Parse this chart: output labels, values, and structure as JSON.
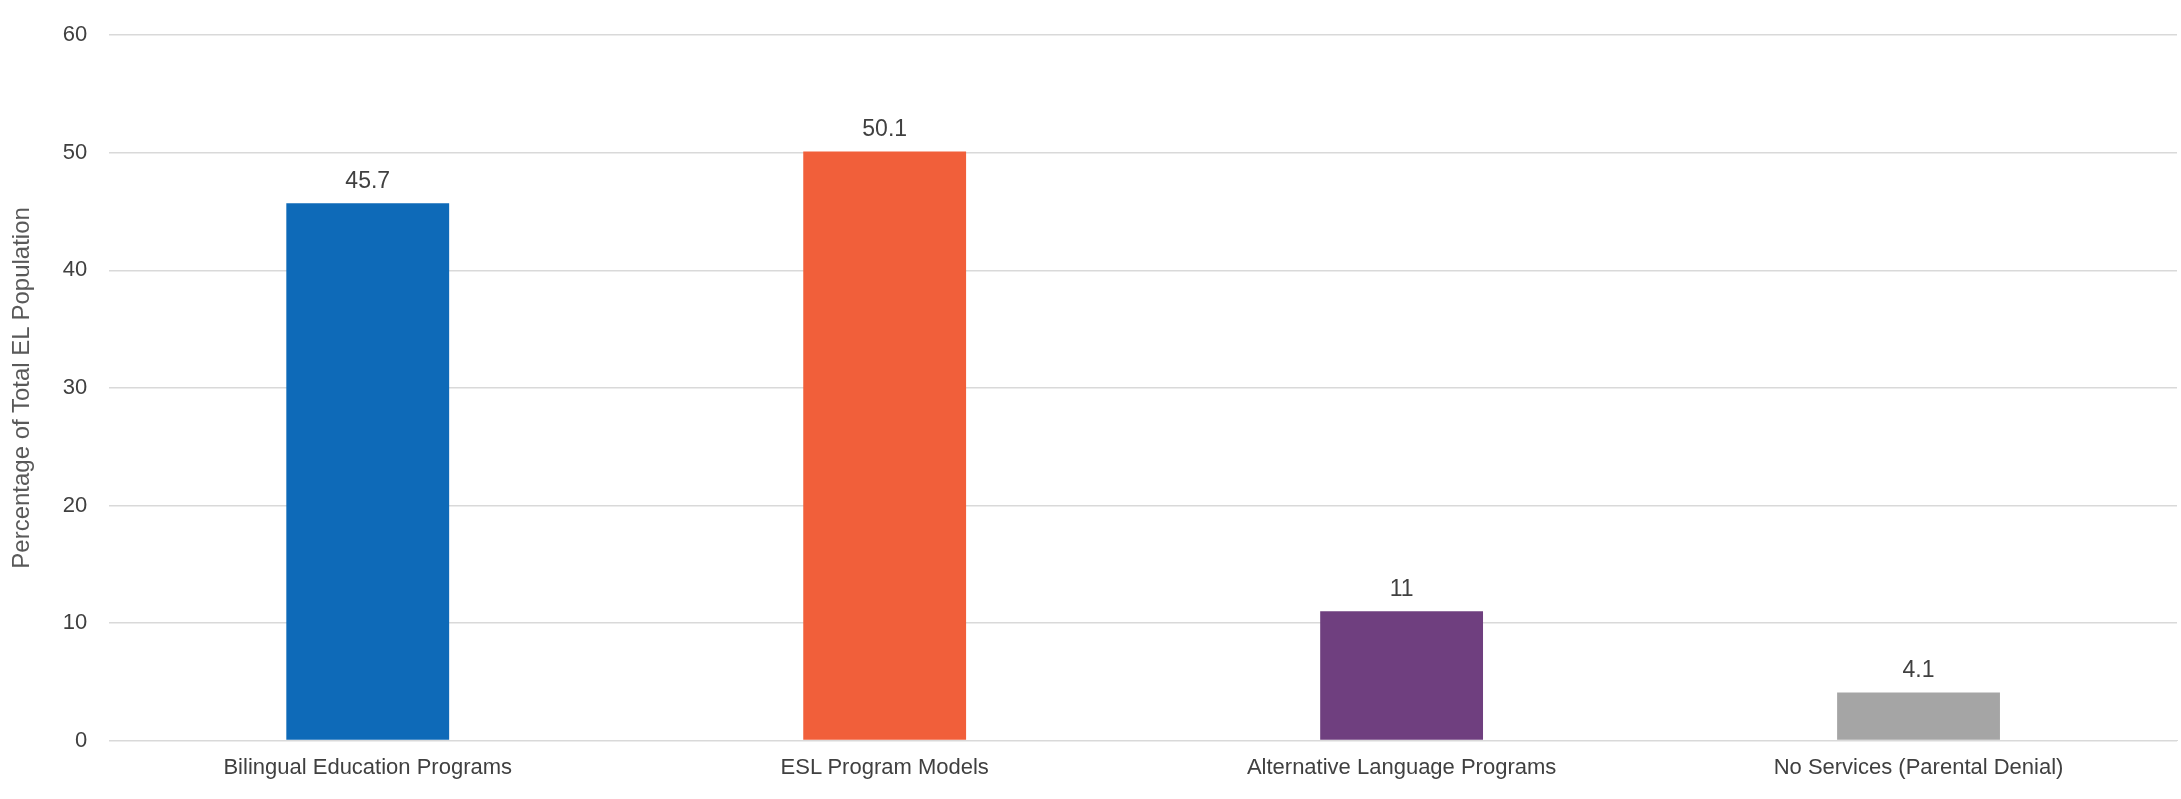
{
  "chart_data": {
    "type": "bar",
    "ylabel": "Percentage of Total EL Population",
    "categories": [
      "Bilingual Education Programs",
      "ESL Program Models",
      "Alternative Language Programs",
      "No Services (Parental Denial)"
    ],
    "values": [
      45.7,
      50.1,
      11,
      4.1
    ],
    "colors": [
      "#0e6ab8",
      "#f15f3a",
      "#6f3f7f",
      "#a5a5a5"
    ],
    "ylim": [
      0,
      60
    ],
    "yticks": [
      0,
      10,
      20,
      30,
      40,
      50,
      60
    ],
    "grid": "y",
    "data_labels": true,
    "legend": false
  }
}
